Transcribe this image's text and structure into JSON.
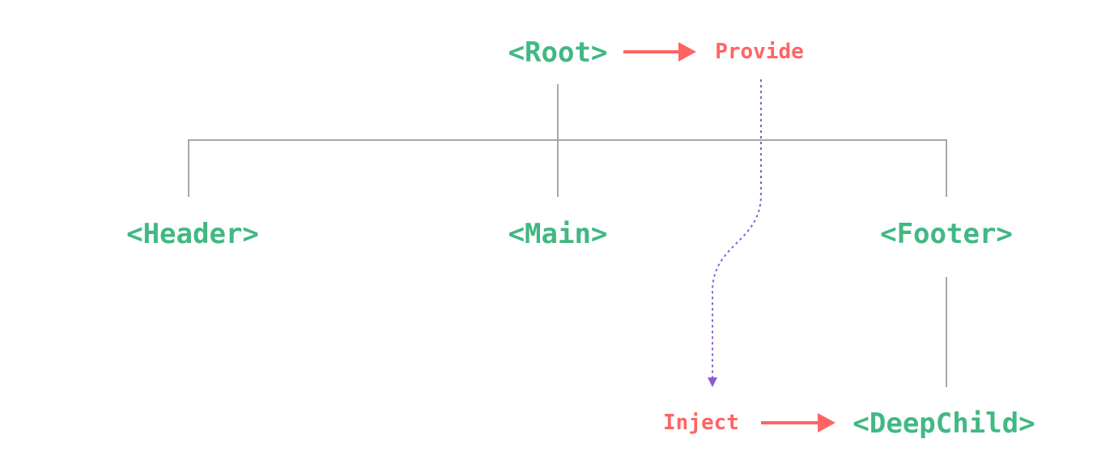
{
  "nodes": {
    "root": "<Root>",
    "header": "<Header>",
    "main": "<Main>",
    "footer": "<Footer>",
    "deep_child": "<DeepChild>"
  },
  "labels": {
    "provide": "Provide",
    "inject": "Inject"
  },
  "colors": {
    "component": "#42b883",
    "action": "#ff6464",
    "flow": "#8a5cd0",
    "tree_line": "#a8a8a8"
  }
}
